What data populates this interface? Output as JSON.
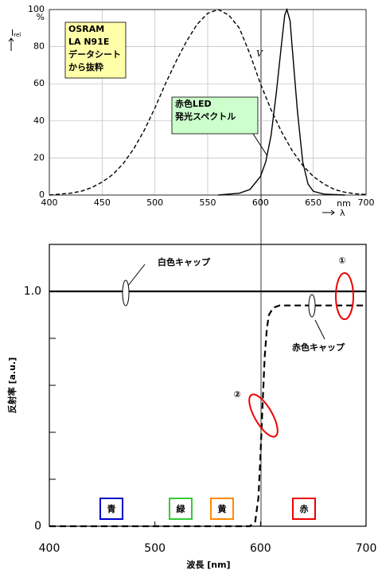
{
  "chart_data": [
    {
      "type": "line",
      "xlim": [
        400,
        700
      ],
      "ylim": [
        0,
        100
      ],
      "xticks": [
        400,
        450,
        500,
        550,
        600,
        650,
        700
      ],
      "yticks": [
        0,
        20,
        40,
        60,
        80,
        100
      ],
      "grid": true,
      "y_unit": "%",
      "ylabel": "I",
      "ylabel_sub": "rel",
      "x_unit": "nm",
      "xlabel": "λ",
      "curve_label": "V",
      "annotations": [
        {
          "lines": [
            "OSRAM",
            "LA N91E",
            "データシート",
            "から抜粋"
          ],
          "color": "#ffffa8"
        },
        {
          "lines": [
            "赤色LED",
            "発光スペクトル"
          ],
          "color": "#ccffcc"
        }
      ],
      "series": [
        {
          "color": "#000",
          "dash": true,
          "x": [
            400,
            410,
            420,
            430,
            440,
            450,
            460,
            470,
            480,
            490,
            500,
            510,
            520,
            530,
            540,
            550,
            560,
            570,
            580,
            590,
            600,
            610,
            620,
            630,
            640,
            650,
            660,
            670,
            680,
            690,
            700
          ],
          "values": [
            0,
            0.5,
            1,
            2,
            4,
            7,
            11,
            17,
            25,
            35,
            47,
            60,
            72,
            83,
            92,
            98,
            100,
            97,
            90,
            76,
            60,
            46,
            34,
            24,
            16,
            10,
            6,
            3,
            1.5,
            0.7,
            0.3
          ]
        },
        {
          "color": "#000",
          "dash": false,
          "x": [
            560,
            580,
            590,
            600,
            605,
            610,
            615,
            620,
            623,
            625,
            628,
            630,
            635,
            640,
            645,
            650,
            660,
            680
          ],
          "values": [
            0,
            1,
            3,
            10,
            18,
            32,
            55,
            82,
            97,
            100,
            94,
            80,
            45,
            18,
            6,
            2,
            0.5,
            0
          ]
        }
      ]
    },
    {
      "type": "line",
      "xlim": [
        400,
        700
      ],
      "ylim": [
        0,
        1.2
      ],
      "xticks": [
        400,
        500,
        600,
        700
      ],
      "yticks": [
        0,
        {
          "value": 1,
          "label": "1.0"
        }
      ],
      "yminor": [
        0.2,
        0.4,
        0.6,
        0.8
      ],
      "xlabel": "波長 [nm]",
      "ylabel": "反射率 [a.u.]",
      "markers": [
        "①",
        "②"
      ],
      "color_labels": [
        {
          "text": "青",
          "color": "#0000cc"
        },
        {
          "text": "緑",
          "color": "#33cc33"
        },
        {
          "text": "黄",
          "color": "#ff8800"
        },
        {
          "text": "赤",
          "color": "#ee0000"
        }
      ],
      "series": [
        {
          "name": "白色キャップ",
          "color": "#000",
          "dash": false,
          "x": [
            400,
            700
          ],
          "values": [
            1,
            1
          ]
        },
        {
          "name": "赤色キャップ",
          "color": "#000",
          "dash": true,
          "x": [
            400,
            590,
            595,
            598,
            600,
            602,
            604,
            606,
            608,
            612,
            618,
            700
          ],
          "values": [
            0,
            0,
            0.02,
            0.12,
            0.3,
            0.52,
            0.72,
            0.84,
            0.9,
            0.93,
            0.94,
            0.94
          ]
        }
      ]
    }
  ]
}
